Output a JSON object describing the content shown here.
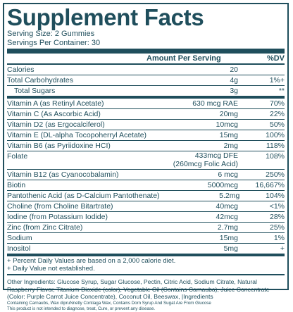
{
  "title": "Supplement Facts",
  "serving_size": "Serving Size: 2 Gummies",
  "servings_per_container": "Servings Per Container: 30",
  "header": {
    "amount": "Amount Per Serving",
    "dv": "%DV"
  },
  "rows": [
    {
      "name": "Calories",
      "amount": "20",
      "dv": ""
    },
    {
      "name": "Total Carbohydrates",
      "amount": "4g",
      "dv": "1%+"
    },
    {
      "name": "Total Sugars",
      "amount": "3g",
      "dv": "**"
    },
    {
      "name": "Vitamin A (as Retinyl Acetate)",
      "amount": "630 mcg  RAE",
      "dv": "70%"
    },
    {
      "name": "Vitamin C (As Ascorbic Acid)",
      "amount": "20mg",
      "dv": "22%"
    },
    {
      "name": "Vitamin D2 (as Ergocalciferol)",
      "amount": "10mcg",
      "dv": "50%"
    },
    {
      "name": "Vitamin E  (DL-alpha Tocopoherryl Acetate)",
      "amount": "15mg",
      "dv": "100%"
    },
    {
      "name": "Vitamin B6 (as Pyriidoxine HCI)",
      "amount": "2mg",
      "dv": "118%"
    },
    {
      "name": "Folate",
      "amount": "433mcg DFE",
      "amount2": "(260mcg Folic Acid)",
      "dv": "108%"
    },
    {
      "name": "Vitamin B12 (as Cyanocobalamin)",
      "amount": "6 mcg",
      "dv": "250%"
    },
    {
      "name": "Biotin",
      "amount": "5000mcg",
      "dv": "16,667%"
    },
    {
      "name": "Pantothenic Acid (as D-Calcium Pantothenate)",
      "amount": "5.2mg",
      "dv": "104%"
    },
    {
      "name": "Choline (from Choline Bitartrate)",
      "amount": "40mcg",
      "dv": "<1%"
    },
    {
      "name": "Iodine (from Potassium Iodide)",
      "amount": "42mcg",
      "dv": "28%"
    },
    {
      "name": "Zinc (from Zinc Citrate)",
      "amount": "2.7mg",
      "dv": "25%"
    },
    {
      "name": "Sodium",
      "amount": "15mg",
      "dv": "1%"
    },
    {
      "name": "Inositol",
      "amount": "5mg",
      "dv": "+"
    }
  ],
  "notes": [
    "+ Percent Daily Values are based on a 2,000 calorie diet.",
    "+ Daily Value not established."
  ],
  "other_ingredients": "Other Ingredients: Glucose Syrup, Sugar Glucose, Pectin, Citric Acid, Sodium Citrate, Natural Raspberry Flavor, Titanium Dioxide (color),  Vegetable Oil (Contains Carnauba), Juice Concentrate (Color: Purple Carrot Juice Concentrate), Coconut Oil, Beeswax, |Ingredients",
  "fine_print_1": "Containing Carnaubs, Wax dipruNnetly Contiaga Wax, Contains Dorn Syrup And Sugat Are From Glucose",
  "fine_print_2": "This product is not intended to diagnose, treat, Cure, or prevent any disease."
}
